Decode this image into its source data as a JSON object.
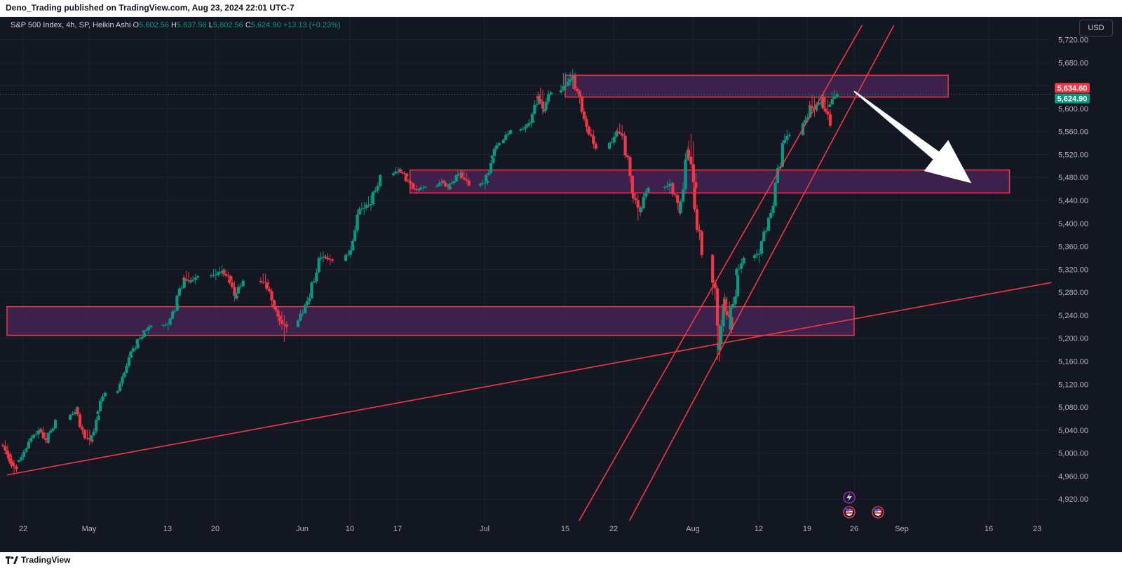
{
  "header": {
    "publish_line": "Deno_Trading published on TradingView.com, Aug 23, 2024 22:01 UTC-7"
  },
  "legend": {
    "symbol": "S&P 500 Index, 4h, SP, Heikin Ashi",
    "o_label": "O",
    "o_value": "5,602.56",
    "h_label": "H",
    "h_value": "5,637.56",
    "l_label": "L",
    "l_value": "5,602.56",
    "c_label": "C",
    "c_value": "5,624.90",
    "change": "+13.13 (+0.23%)"
  },
  "currency_button": "USD",
  "footer": {
    "brand": "TradingView"
  },
  "colors": {
    "background": "#131722",
    "up": "#089981",
    "down": "#f23645",
    "zone_fill": "#4a2559",
    "zone_border": "#f23645",
    "line": "#f23645",
    "grid": "#1e222d",
    "axis_text": "#b2b5be",
    "arrow": "#ffffff"
  },
  "chart_data": {
    "type": "candlestick",
    "style": "Heikin Ashi",
    "timeframe": "4h",
    "y_axis": {
      "ticks": [
        "5,720.00",
        "5,680.00",
        "5,640.00",
        "5,600.00",
        "5,560.00",
        "5,520.00",
        "5,480.00",
        "5,440.00",
        "5,400.00",
        "5,360.00",
        "5,320.00",
        "5,280.00",
        "5,240.00",
        "5,200.00",
        "5,160.00",
        "5,120.00",
        "5,080.00",
        "5,040.00",
        "5,000.00",
        "4,960.00",
        "4,920.00"
      ],
      "range": [
        4890,
        5740
      ]
    },
    "x_axis": {
      "ticks": [
        "22",
        "May",
        "13",
        "20",
        "Jun",
        "10",
        "17",
        "Jul",
        "15",
        "22",
        "Aug",
        "12",
        "19",
        "26",
        "Sep",
        "16",
        "23"
      ]
    },
    "price_tags": [
      {
        "label": "5,634.60",
        "value": 5634.6,
        "color": "#f23645"
      },
      {
        "label": "5,624.90",
        "value": 5624.9,
        "color": "#089981"
      }
    ],
    "current_price": 5624.9,
    "zones": [
      {
        "from_date": "2024-04-17",
        "to_date": "2024-08-26",
        "low": 5205,
        "high": 5255
      },
      {
        "from_date": "2024-06-19",
        "to_date": "2024-09-19",
        "low": 5453,
        "high": 5493
      },
      {
        "from_date": "2024-07-15",
        "to_date": "2024-09-09",
        "low": 5620,
        "high": 5658
      }
    ],
    "trend_lines": [
      {
        "from": {
          "date": "2024-04-17",
          "value": 4962
        },
        "to": {
          "date": "2024-09-25",
          "value": 5297
        }
      },
      {
        "from": {
          "date": "2024-07-17",
          "value": 4882
        },
        "to": {
          "date": "2024-08-27",
          "value": 5745
        }
      },
      {
        "from": {
          "date": "2024-07-24",
          "value": 4882
        },
        "to": {
          "date": "2024-08-31",
          "value": 5745
        }
      }
    ],
    "projection_arrow": {
      "from": {
        "date": "2024-08-26",
        "value": 5630
      },
      "to": {
        "date": "2024-09-13",
        "value": 5470
      }
    },
    "events": [
      {
        "date": "2024-08-23",
        "kind": "lightning"
      },
      {
        "date": "2024-08-23",
        "kind": "us-flag"
      },
      {
        "date": "2024-08-29",
        "kind": "us-flag"
      }
    ],
    "candles": [
      [
        "2024-04-17",
        5014,
        5024,
        4990,
        4996
      ],
      [
        "2024-04-18",
        5001,
        5006,
        4975,
        4980
      ],
      [
        "2024-04-19",
        4990,
        5000,
        4958,
        4972
      ],
      [
        "2024-04-22",
        4985,
        5008,
        4980,
        5004
      ],
      [
        "2024-04-23",
        5005,
        5035,
        5002,
        5030
      ],
      [
        "2024-04-24",
        5028,
        5048,
        5020,
        5042
      ],
      [
        "2024-04-25",
        5040,
        5050,
        5012,
        5018
      ],
      [
        "2024-04-26",
        5020,
        5062,
        5018,
        5058
      ],
      [
        "2024-04-29",
        5058,
        5085,
        5055,
        5080
      ],
      [
        "2024-04-30",
        5078,
        5082,
        5020,
        5028
      ],
      [
        "2024-05-01",
        5030,
        5045,
        5010,
        5020
      ],
      [
        "2024-05-02",
        5022,
        5070,
        5018,
        5065
      ],
      [
        "2024-05-03",
        5068,
        5110,
        5065,
        5105
      ],
      [
        "2024-05-06",
        5105,
        5140,
        5100,
        5136
      ],
      [
        "2024-05-07",
        5136,
        5175,
        5132,
        5170
      ],
      [
        "2024-05-08",
        5170,
        5195,
        5165,
        5190
      ],
      [
        "2024-05-09",
        5190,
        5214,
        5186,
        5210
      ],
      [
        "2024-05-10",
        5210,
        5226,
        5203,
        5222
      ],
      [
        "2024-05-13",
        5222,
        5230,
        5212,
        5226
      ],
      [
        "2024-05-14",
        5226,
        5262,
        5222,
        5258
      ],
      [
        "2024-05-15",
        5258,
        5310,
        5255,
        5305
      ],
      [
        "2024-05-16",
        5305,
        5320,
        5292,
        5298
      ],
      [
        "2024-05-17",
        5298,
        5315,
        5290,
        5308
      ],
      [
        "2024-05-20",
        5308,
        5322,
        5298,
        5312
      ],
      [
        "2024-05-21",
        5312,
        5328,
        5305,
        5318
      ],
      [
        "2024-05-22",
        5318,
        5325,
        5290,
        5302
      ],
      [
        "2024-05-23",
        5302,
        5312,
        5260,
        5270
      ],
      [
        "2024-05-24",
        5270,
        5305,
        5265,
        5300
      ],
      [
        "2024-05-28",
        5300,
        5315,
        5285,
        5295
      ],
      [
        "2024-05-29",
        5295,
        5300,
        5248,
        5258
      ],
      [
        "2024-05-30",
        5258,
        5265,
        5225,
        5235
      ],
      [
        "2024-05-31",
        5235,
        5250,
        5190,
        5220
      ],
      [
        "2024-06-03",
        5220,
        5262,
        5215,
        5256
      ],
      [
        "2024-06-04",
        5256,
        5280,
        5250,
        5272
      ],
      [
        "2024-06-05",
        5272,
        5345,
        5268,
        5338
      ],
      [
        "2024-06-06",
        5338,
        5352,
        5330,
        5342
      ],
      [
        "2024-06-07",
        5342,
        5350,
        5325,
        5335
      ],
      [
        "2024-06-10",
        5335,
        5370,
        5330,
        5362
      ],
      [
        "2024-06-11",
        5362,
        5430,
        5358,
        5422
      ],
      [
        "2024-06-12",
        5422,
        5440,
        5410,
        5430
      ],
      [
        "2024-06-13",
        5430,
        5450,
        5420,
        5435
      ],
      [
        "2024-06-14",
        5435,
        5490,
        5430,
        5484
      ],
      [
        "2024-06-17",
        5484,
        5502,
        5478,
        5494
      ],
      [
        "2024-06-18",
        5494,
        5498,
        5478,
        5482
      ],
      [
        "2024-06-19",
        5482,
        5486,
        5455,
        5462
      ],
      [
        "2024-06-20",
        5462,
        5470,
        5450,
        5458
      ],
      [
        "2024-06-21",
        5458,
        5468,
        5452,
        5464
      ],
      [
        "2024-06-24",
        5464,
        5480,
        5458,
        5474
      ],
      [
        "2024-06-25",
        5474,
        5478,
        5454,
        5460
      ],
      [
        "2024-06-26",
        5460,
        5488,
        5456,
        5482
      ],
      [
        "2024-06-27",
        5482,
        5494,
        5474,
        5488
      ],
      [
        "2024-06-28",
        5488,
        5500,
        5460,
        5466
      ],
      [
        "2024-07-01",
        5466,
        5480,
        5455,
        5474
      ],
      [
        "2024-07-02",
        5474,
        5520,
        5470,
        5514
      ],
      [
        "2024-07-03",
        5514,
        5545,
        5510,
        5540
      ],
      [
        "2024-07-05",
        5540,
        5568,
        5536,
        5562
      ],
      [
        "2024-07-08",
        5562,
        5575,
        5555,
        5570
      ],
      [
        "2024-07-09",
        5570,
        5585,
        5562,
        5578
      ],
      [
        "2024-07-10",
        5578,
        5630,
        5575,
        5622
      ],
      [
        "2024-07-11",
        5622,
        5642,
        5585,
        5595
      ],
      [
        "2024-07-12",
        5595,
        5635,
        5590,
        5628
      ],
      [
        "2024-07-15",
        5628,
        5668,
        5622,
        5645
      ],
      [
        "2024-07-16",
        5645,
        5670,
        5628,
        5658
      ],
      [
        "2024-07-17",
        5658,
        5662,
        5585,
        5598
      ],
      [
        "2024-07-18",
        5598,
        5604,
        5555,
        5565
      ],
      [
        "2024-07-19",
        5565,
        5575,
        5522,
        5530
      ],
      [
        "2024-07-22",
        5530,
        5568,
        5525,
        5560
      ],
      [
        "2024-07-23",
        5560,
        5575,
        5545,
        5552
      ],
      [
        "2024-07-24",
        5552,
        5556,
        5440,
        5452
      ],
      [
        "2024-07-25",
        5452,
        5462,
        5398,
        5420
      ],
      [
        "2024-07-26",
        5420,
        5468,
        5415,
        5462
      ],
      [
        "2024-07-29",
        5462,
        5478,
        5448,
        5470
      ],
      [
        "2024-07-30",
        5470,
        5472,
        5405,
        5418
      ],
      [
        "2024-07-31",
        5418,
        5540,
        5412,
        5528
      ],
      [
        "2024-08-01",
        5528,
        5568,
        5440,
        5462
      ],
      [
        "2024-08-02",
        5462,
        5470,
        5330,
        5345
      ],
      [
        "2024-08-05",
        5345,
        5350,
        5120,
        5180
      ],
      [
        "2024-08-06",
        5180,
        5280,
        5170,
        5268
      ],
      [
        "2024-08-07",
        5268,
        5292,
        5195,
        5215
      ],
      [
        "2024-08-08",
        5215,
        5322,
        5208,
        5310
      ],
      [
        "2024-08-09",
        5310,
        5348,
        5302,
        5340
      ],
      [
        "2024-08-12",
        5340,
        5360,
        5325,
        5352
      ],
      [
        "2024-08-13",
        5352,
        5412,
        5348,
        5406
      ],
      [
        "2024-08-14",
        5406,
        5440,
        5400,
        5434
      ],
      [
        "2024-08-15",
        5434,
        5545,
        5430,
        5538
      ],
      [
        "2024-08-16",
        5538,
        5565,
        5530,
        5554
      ],
      [
        "2024-08-19",
        5554,
        5612,
        5550,
        5605
      ],
      [
        "2024-08-20",
        5605,
        5625,
        5585,
        5598
      ],
      [
        "2024-08-21",
        5598,
        5632,
        5592,
        5620
      ],
      [
        "2024-08-22",
        5620,
        5642,
        5560,
        5570
      ],
      [
        "2024-08-23",
        5602.56,
        5637.56,
        5602.56,
        5624.9
      ]
    ]
  }
}
